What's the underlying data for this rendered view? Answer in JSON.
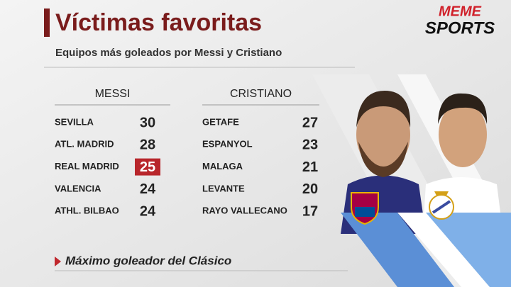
{
  "header": {
    "title": "Víctimas favoritas",
    "subtitle": "Equipos más goleados por Messi y Cristiano",
    "logo_top": "MEME",
    "logo_bottom": "SPORTS"
  },
  "table": {
    "columns": [
      {
        "name": "MESSI",
        "rows": [
          [
            "SEVILLA",
            30
          ],
          [
            "ATL. MADRID",
            28
          ],
          [
            "REAL MADRID",
            25
          ],
          [
            "VALENCIA",
            24
          ],
          [
            "ATHL. BILBAO",
            24
          ]
        ],
        "highlight": {
          "row": 2,
          "color": "#b8262b"
        }
      },
      {
        "name": "CRISTIANO",
        "rows": [
          [
            "GETAFE",
            27
          ],
          [
            "ESPANYOL",
            23
          ],
          [
            "MALAGA",
            21
          ],
          [
            "LEVANTE",
            20
          ],
          [
            "RAYO VALLECANO",
            17
          ]
        ]
      }
    ]
  },
  "footer": {
    "note": "Máximo goleador del Clásico"
  }
}
